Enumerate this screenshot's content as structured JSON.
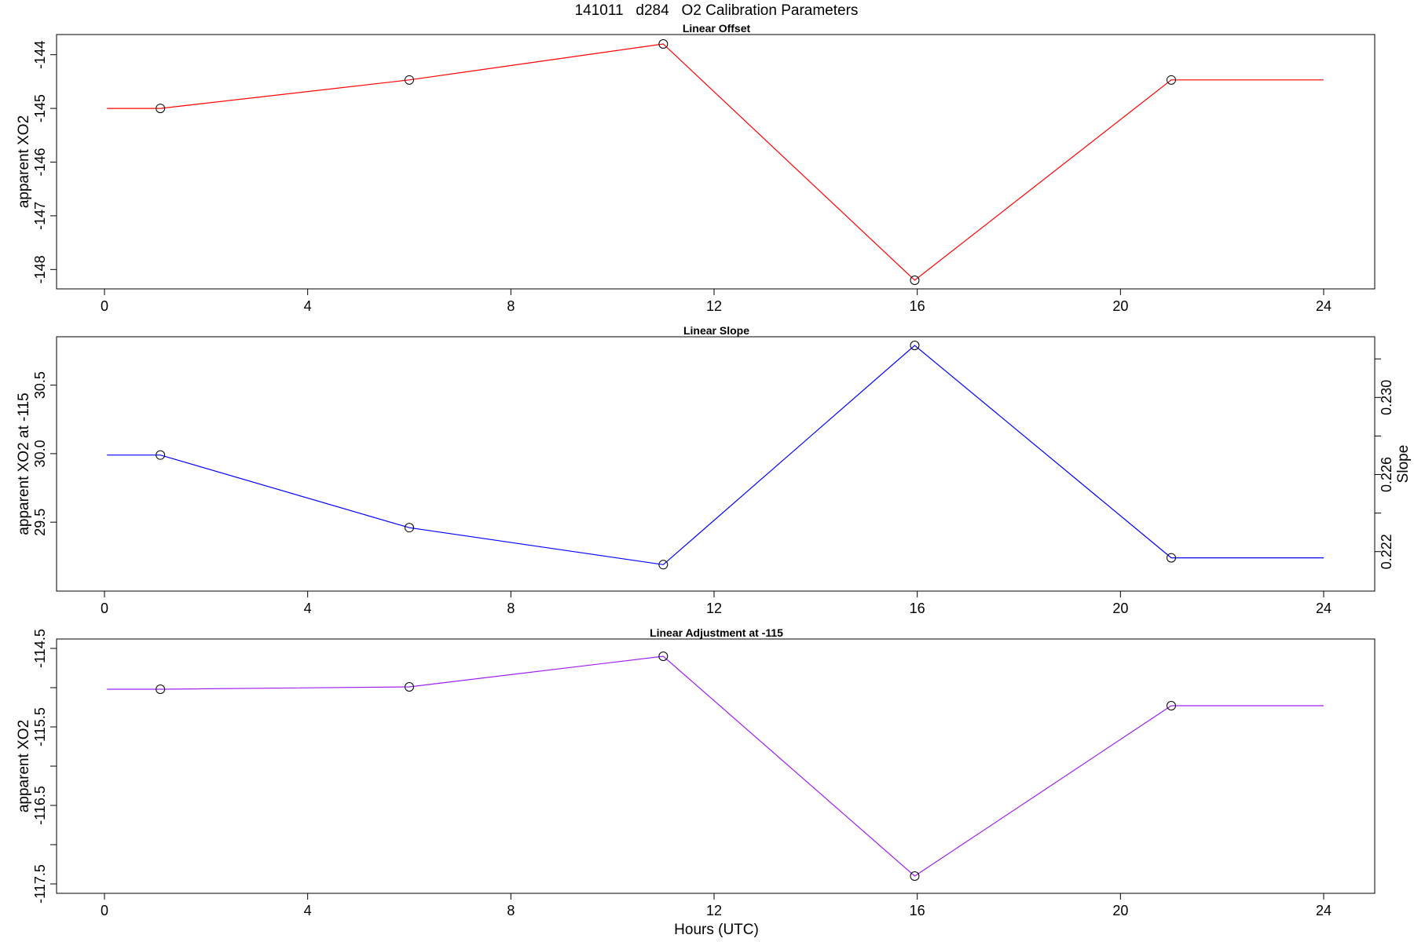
{
  "figure": {
    "title": "141011   d284   O2 Calibration Parameters",
    "xlabel": "Hours (UTC)"
  },
  "chart_data": [
    {
      "type": "line",
      "title": "Linear Offset",
      "xlabel": "",
      "ylabel": "apparent XO2",
      "xlim": [
        -0.9,
        25.0
      ],
      "ylim": [
        -148.2,
        -143.8
      ],
      "xticks": [
        0,
        4,
        8,
        12,
        16,
        20,
        24
      ],
      "xtick_labels": [
        "0",
        "4",
        "8",
        "12",
        "16",
        "20",
        "24"
      ],
      "yticks": [
        -148,
        -147,
        -146,
        -145,
        -144
      ],
      "ytick_labels": [
        "-148",
        "-147",
        "-146",
        "-145",
        "-144"
      ],
      "color": "#ff0000",
      "line_x": [
        0.05,
        1.1,
        6.0,
        11.0,
        15.95,
        21.0,
        24.0
      ],
      "line_y": [
        -145.0,
        -145.0,
        -144.47,
        -143.8,
        -148.2,
        -144.47,
        -144.47
      ],
      "points_x": [
        1.1,
        6.0,
        11.0,
        15.95,
        21.0
      ],
      "points_y": [
        -145.0,
        -144.47,
        -143.8,
        -148.2,
        -144.47
      ]
    },
    {
      "type": "line",
      "title": "Linear Slope",
      "xlabel": "",
      "ylabel": "apparent XO2 at -115",
      "ylabel_right": "Slope",
      "xlim": [
        -0.9,
        25.0
      ],
      "ylim": [
        29.06,
        30.79
      ],
      "xticks": [
        0,
        4,
        8,
        12,
        16,
        20,
        24
      ],
      "xtick_labels": [
        "0",
        "4",
        "8",
        "12",
        "16",
        "20",
        "24"
      ],
      "yticks": [
        29.5,
        30.0,
        30.5
      ],
      "ytick_labels": [
        "29.5",
        "30.0",
        "30.5"
      ],
      "right_ylim": [
        0.2204,
        0.2327
      ],
      "right_yticks": [
        0.222,
        0.224,
        0.226,
        0.228,
        0.23,
        0.232
      ],
      "right_ytick_labels": [
        "0.222",
        "",
        "0.226",
        "",
        "0.230",
        ""
      ],
      "color": "#0000ff",
      "line_x": [
        0.05,
        1.1,
        6.0,
        11.0,
        15.95,
        21.0,
        24.0
      ],
      "line_y": [
        29.99,
        29.99,
        29.46,
        29.19,
        30.79,
        29.24,
        29.24
      ],
      "points_x": [
        1.1,
        6.0,
        11.0,
        15.95,
        21.0
      ],
      "points_y": [
        29.99,
        29.46,
        29.19,
        30.79,
        29.24
      ]
    },
    {
      "type": "line",
      "title": "Linear Adjustment at -115",
      "xlabel": "Hours (UTC)",
      "ylabel": "apparent XO2",
      "xlim": [
        -0.9,
        25.0
      ],
      "ylim": [
        -117.5,
        -114.5
      ],
      "xticks": [
        0,
        4,
        8,
        12,
        16,
        20,
        24
      ],
      "xtick_labels": [
        "0",
        "4",
        "8",
        "12",
        "16",
        "20",
        "24"
      ],
      "yticks": [
        -117.5,
        -117.0,
        -116.5,
        -116.0,
        -115.5,
        -115.0,
        -114.5
      ],
      "ytick_labels": [
        "-117.5",
        "",
        "-116.5",
        "",
        "-115.5",
        "",
        "-114.5"
      ],
      "color": "#a020f0",
      "line_x": [
        0.05,
        1.1,
        6.0,
        11.0,
        15.95,
        21.0,
        24.0
      ],
      "line_y": [
        -115.02,
        -115.02,
        -114.99,
        -114.6,
        -117.4,
        -115.23,
        -115.23
      ],
      "points_x": [
        1.1,
        6.0,
        11.0,
        15.95,
        21.0
      ],
      "points_y": [
        -115.02,
        -114.99,
        -114.6,
        -117.4,
        -115.23
      ]
    }
  ]
}
